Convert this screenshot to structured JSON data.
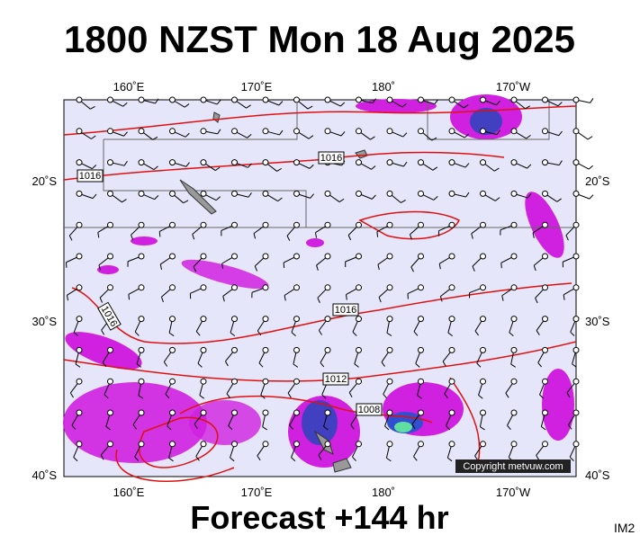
{
  "header": {
    "title": "1800 NZST Mon 18 Aug 2025"
  },
  "map": {
    "top_labels": [
      "160˚E",
      "170˚E",
      "180˚",
      "170˚W"
    ],
    "bottom_labels": [
      "160˚E",
      "170˚E",
      "180˚",
      "170˚W"
    ],
    "left_labels": [
      "20˚S",
      "30˚S",
      "40˚S"
    ],
    "right_labels": [
      "20˚S",
      "30˚S",
      "40˚S"
    ],
    "isobar_labels": [
      "1016",
      "1016",
      "1016",
      "1016",
      "1012",
      "1008"
    ],
    "copyright": "Copyright metvuw.com"
  },
  "footer": {
    "forecast": "Forecast +144 hr",
    "image_id": "IM2"
  }
}
